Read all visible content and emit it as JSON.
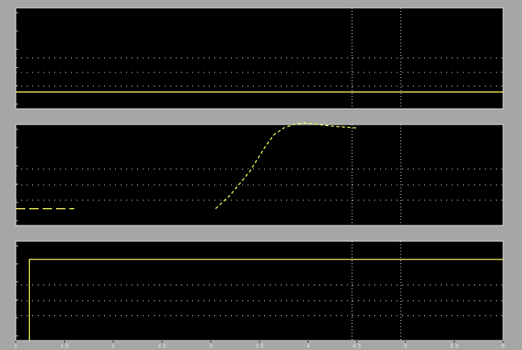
{
  "window": {
    "background_color": "#a6a6a6",
    "axes_background": "#000000",
    "grid_color": "#ffffff",
    "signal_color": "#ffff66"
  },
  "x_axis": {
    "range": [
      0,
      10
    ],
    "tick_labels": [
      "1",
      "1.5",
      "2",
      "2.5",
      "3",
      "3.5",
      "4",
      "4.5",
      "5",
      "5.5",
      "6"
    ]
  },
  "chart_data": [
    {
      "type": "line",
      "name_visible": false,
      "ylim": [
        0,
        6
      ],
      "grid": true,
      "series": [
        {
          "x": [
            0,
            10
          ],
          "y": [
            1,
            1
          ]
        }
      ]
    },
    {
      "type": "line",
      "name_visible": false,
      "ylim": [
        0,
        6
      ],
      "grid": true,
      "series": [
        {
          "x": [
            0,
            1.2
          ],
          "y": [
            1,
            1
          ]
        },
        {
          "x": [
            4.1,
            4.4,
            4.8,
            5.1,
            5.3,
            5.5,
            5.7,
            5.9,
            6.2,
            6.5,
            7.0
          ],
          "y": [
            1,
            1.8,
            3.2,
            4.6,
            5.4,
            5.8,
            6.0,
            6.1,
            6.0,
            5.9,
            5.8
          ]
        }
      ]
    },
    {
      "type": "line",
      "name_visible": false,
      "ylim": [
        0,
        6
      ],
      "grid": true,
      "series": [
        {
          "x": [
            0.28,
            0.28,
            10
          ],
          "y": [
            0,
            4.9,
            4.9
          ]
        }
      ]
    }
  ]
}
